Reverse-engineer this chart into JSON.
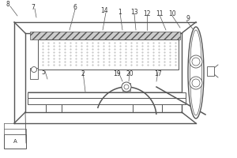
{
  "bg_color": "#ffffff",
  "line_color": "#555555",
  "label_color": "#333333",
  "lw": 0.7,
  "labels": [
    "8",
    "7",
    "6",
    "14",
    "1",
    "13",
    "12",
    "11",
    "10",
    "9",
    "5",
    "2",
    "19",
    "20",
    "17",
    "A"
  ]
}
